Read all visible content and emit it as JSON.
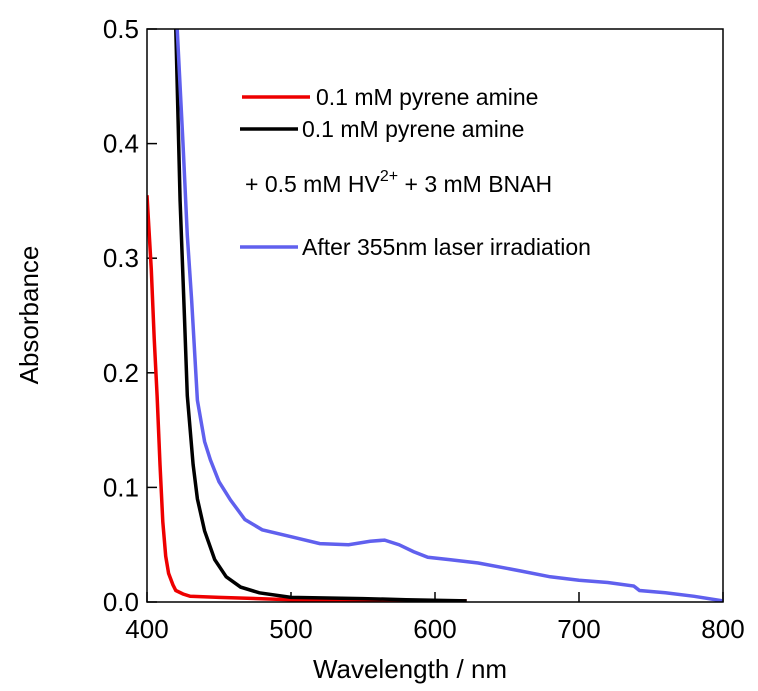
{
  "chart_data": {
    "type": "line",
    "xlabel": "Wavelength / nm",
    "ylabel": "Absorbance",
    "xlim": [
      400,
      800
    ],
    "ylim": [
      0,
      0.5
    ],
    "xticks": [
      400,
      500,
      600,
      700,
      800
    ],
    "yticks": [
      {
        "value": 0,
        "label": "0.0"
      },
      0.1,
      0.2,
      0.3,
      0.4,
      0.5
    ],
    "series": [
      {
        "name": "0.1 mM pyrene amine",
        "color": "#ee0000",
        "x": [
          400,
          403,
          405,
          407,
          409,
          411,
          413,
          415,
          418,
          420,
          425,
          430,
          450,
          500,
          550,
          600,
          622
        ],
        "values": [
          0.355,
          0.29,
          0.23,
          0.18,
          0.12,
          0.07,
          0.04,
          0.025,
          0.015,
          0.01,
          0.007,
          0.005,
          0.004,
          0.002,
          0.001,
          0.001,
          0.001
        ]
      },
      {
        "name": "0.1 mM pyrene amine",
        "color": "#000000",
        "x": [
          420,
          423,
          426,
          428,
          432,
          435,
          440,
          447,
          455,
          465,
          478,
          500,
          550,
          580,
          622
        ],
        "values": [
          0.5,
          0.35,
          0.25,
          0.18,
          0.12,
          0.09,
          0.062,
          0.037,
          0.022,
          0.013,
          0.008,
          0.004,
          0.003,
          0.002,
          0.001
        ]
      },
      {
        "name": "After 355nm laser irradiation",
        "color": "#6060ee",
        "x": [
          421,
          425,
          428,
          431,
          435,
          440,
          444,
          450,
          458,
          468,
          480,
          500,
          520,
          540,
          555,
          565,
          575,
          585,
          595,
          610,
          630,
          660,
          680,
          700,
          720,
          738,
          742,
          760,
          780,
          800
        ],
        "values": [
          0.5,
          0.4,
          0.32,
          0.264,
          0.176,
          0.14,
          0.124,
          0.105,
          0.089,
          0.072,
          0.063,
          0.057,
          0.051,
          0.05,
          0.053,
          0.054,
          0.05,
          0.044,
          0.039,
          0.037,
          0.034,
          0.027,
          0.022,
          0.019,
          0.017,
          0.014,
          0.01,
          0.008,
          0.005,
          0.001
        ]
      }
    ],
    "legend_note": {
      "text": "+ 0.5 mM HV",
      "superscript": "2+",
      "suffix": " + 3 mM BNAH"
    }
  }
}
